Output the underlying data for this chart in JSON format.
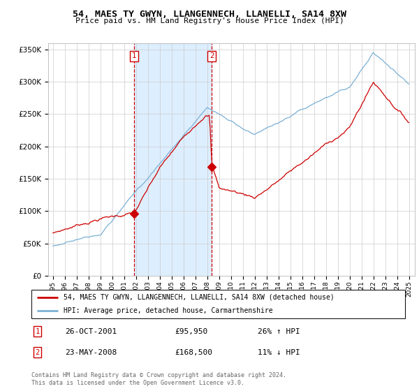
{
  "title": "54, MAES TY GWYN, LLANGENNECH, LLANELLI, SA14 8XW",
  "subtitle": "Price paid vs. HM Land Registry's House Price Index (HPI)",
  "ylim": [
    0,
    360000
  ],
  "yticks": [
    0,
    50000,
    100000,
    150000,
    200000,
    250000,
    300000,
    350000
  ],
  "ytick_labels": [
    "£0",
    "£50K",
    "£100K",
    "£150K",
    "£200K",
    "£250K",
    "£300K",
    "£350K"
  ],
  "x_start_year": 1995,
  "x_end_year": 2025,
  "sale1_date": 2001.82,
  "sale1_price": 95950,
  "sale1_label": "1",
  "sale1_hpi_pct": "26% ↑ HPI",
  "sale1_date_str": "26-OCT-2001",
  "sale2_date": 2008.39,
  "sale2_price": 168500,
  "sale2_label": "2",
  "sale2_hpi_pct": "11% ↓ HPI",
  "sale2_date_str": "23-MAY-2008",
  "legend_label_red": "54, MAES TY GWYN, LLANGENNECH, LLANELLI, SA14 8XW (detached house)",
  "legend_label_blue": "HPI: Average price, detached house, Carmarthenshire",
  "footnote": "Contains HM Land Registry data © Crown copyright and database right 2024.\nThis data is licensed under the Open Government Licence v3.0.",
  "shade_color": "#ddeeff",
  "red_line_color": "#cc0000",
  "blue_line_color": "#7ab0d4",
  "grid_color": "#cccccc",
  "vline_color": "#cc0000",
  "box_color": "#cc0000"
}
